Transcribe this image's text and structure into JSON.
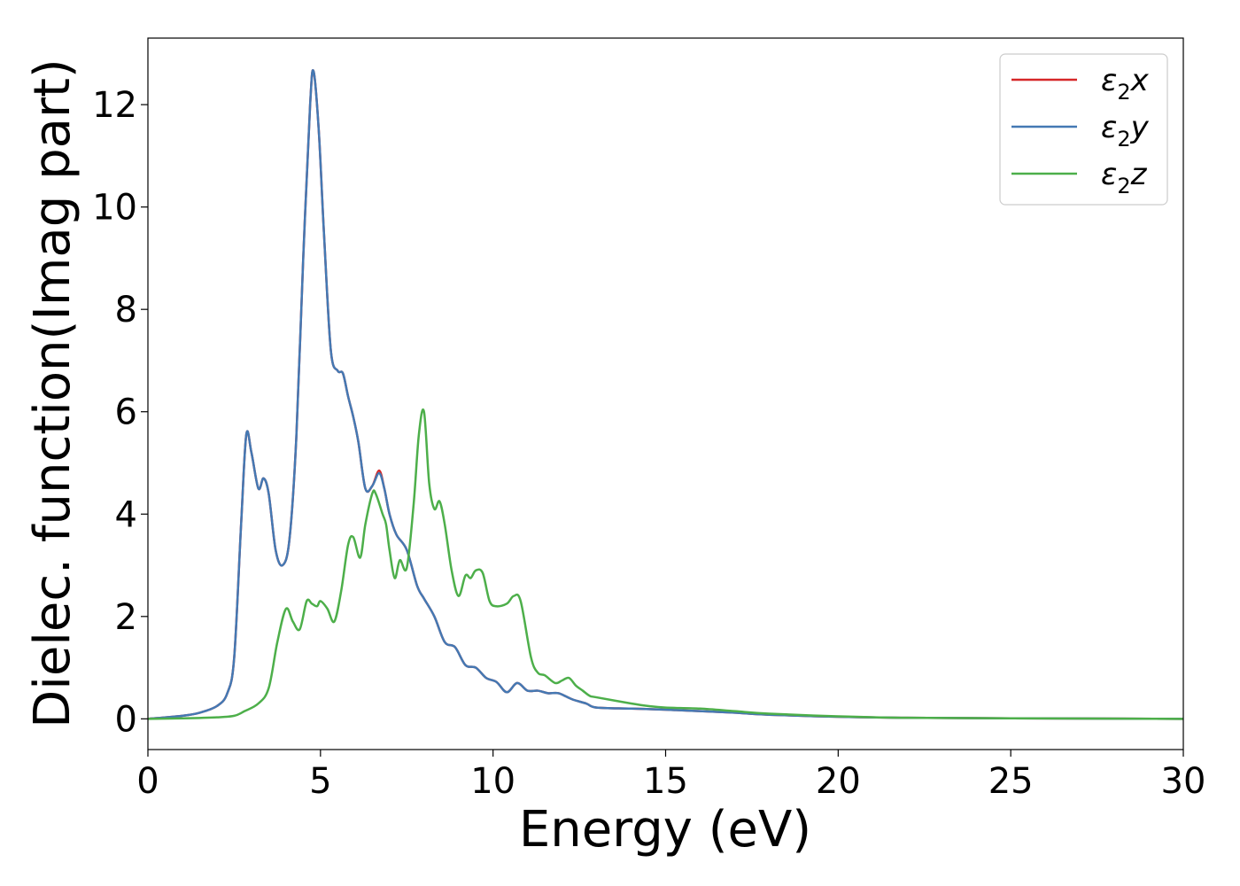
{
  "chart_data": {
    "type": "line",
    "title": "",
    "xlabel": "Energy (eV)",
    "ylabel": "Dielec. function(Imag part)",
    "xlim": [
      0,
      30
    ],
    "ylim": [
      -0.6,
      13.3
    ],
    "xticks": [
      0,
      5,
      10,
      15,
      20,
      25,
      30
    ],
    "yticks": [
      0,
      2,
      4,
      6,
      8,
      10,
      12
    ],
    "grid": false,
    "legend_position": "top-right",
    "series": [
      {
        "name": "ε₂x",
        "legend_main": "ε",
        "legend_sub": "2",
        "legend_tail": "x",
        "color": "#d62728",
        "x": [
          0,
          1,
          1.5,
          2,
          2.3,
          2.5,
          2.7,
          2.85,
          3.0,
          3.2,
          3.35,
          3.5,
          3.7,
          3.9,
          4.1,
          4.3,
          4.5,
          4.7,
          4.8,
          4.95,
          5.1,
          5.3,
          5.5,
          5.65,
          5.8,
          5.95,
          6.1,
          6.3,
          6.5,
          6.7,
          6.85,
          7.0,
          7.2,
          7.5,
          7.8,
          8.0,
          8.3,
          8.6,
          8.9,
          9.2,
          9.5,
          9.8,
          10.1,
          10.4,
          10.7,
          11.0,
          11.3,
          11.6,
          11.9,
          12.3,
          12.7,
          13.0,
          14,
          15,
          16,
          17,
          18,
          20,
          22,
          25,
          30
        ],
        "y": [
          0,
          0.06,
          0.12,
          0.25,
          0.5,
          1.2,
          3.8,
          5.55,
          5.2,
          4.5,
          4.7,
          4.4,
          3.3,
          3.0,
          3.5,
          5.5,
          9.0,
          12.0,
          12.65,
          11.5,
          9.5,
          7.2,
          6.8,
          6.75,
          6.3,
          5.9,
          5.4,
          4.5,
          4.55,
          4.85,
          4.5,
          4.0,
          3.6,
          3.3,
          2.6,
          2.35,
          2.0,
          1.5,
          1.4,
          1.05,
          1.0,
          0.8,
          0.72,
          0.52,
          0.7,
          0.55,
          0.55,
          0.5,
          0.5,
          0.38,
          0.3,
          0.22,
          0.2,
          0.18,
          0.15,
          0.12,
          0.08,
          0.04,
          0.02,
          0.01,
          0.0
        ]
      },
      {
        "name": "ε₂y",
        "legend_main": "ε",
        "legend_sub": "2",
        "legend_tail": "y",
        "color": "#4479b3",
        "x": [
          0,
          1,
          1.5,
          2,
          2.3,
          2.5,
          2.7,
          2.85,
          3.0,
          3.2,
          3.35,
          3.5,
          3.7,
          3.9,
          4.1,
          4.3,
          4.5,
          4.7,
          4.8,
          4.95,
          5.1,
          5.3,
          5.5,
          5.65,
          5.8,
          5.95,
          6.1,
          6.3,
          6.5,
          6.7,
          6.85,
          7.0,
          7.2,
          7.5,
          7.8,
          8.0,
          8.3,
          8.6,
          8.9,
          9.2,
          9.5,
          9.8,
          10.1,
          10.4,
          10.7,
          11.0,
          11.3,
          11.6,
          11.9,
          12.3,
          12.7,
          13.0,
          14,
          15,
          16,
          17,
          18,
          20,
          22,
          25,
          30
        ],
        "y": [
          0,
          0.06,
          0.12,
          0.25,
          0.5,
          1.2,
          3.8,
          5.55,
          5.2,
          4.5,
          4.7,
          4.4,
          3.3,
          3.0,
          3.5,
          5.5,
          9.0,
          12.0,
          12.65,
          11.5,
          9.5,
          7.2,
          6.8,
          6.75,
          6.3,
          5.9,
          5.4,
          4.5,
          4.55,
          4.8,
          4.5,
          4.0,
          3.6,
          3.3,
          2.6,
          2.35,
          2.0,
          1.5,
          1.4,
          1.05,
          1.0,
          0.8,
          0.72,
          0.52,
          0.7,
          0.55,
          0.55,
          0.5,
          0.5,
          0.38,
          0.3,
          0.22,
          0.2,
          0.18,
          0.15,
          0.12,
          0.08,
          0.04,
          0.02,
          0.01,
          0.0
        ]
      },
      {
        "name": "ε₂z",
        "legend_main": "ε",
        "legend_sub": "2",
        "legend_tail": "z",
        "color": "#4daf4a",
        "x": [
          0,
          1,
          2,
          2.5,
          2.8,
          3.2,
          3.5,
          3.75,
          4.0,
          4.2,
          4.4,
          4.6,
          4.75,
          4.9,
          5.0,
          5.2,
          5.4,
          5.6,
          5.8,
          5.95,
          6.15,
          6.3,
          6.5,
          6.6,
          6.8,
          6.9,
          7.0,
          7.15,
          7.3,
          7.5,
          7.7,
          7.85,
          8.0,
          8.15,
          8.3,
          8.45,
          8.6,
          8.8,
          9.0,
          9.2,
          9.35,
          9.5,
          9.7,
          9.9,
          10.1,
          10.4,
          10.6,
          10.8,
          11.1,
          11.3,
          11.5,
          11.8,
          12.0,
          12.2,
          12.4,
          12.6,
          12.8,
          13.0,
          14,
          14.5,
          15,
          16,
          17,
          18,
          20,
          22,
          25,
          30
        ],
        "y": [
          0,
          0.01,
          0.03,
          0.06,
          0.15,
          0.3,
          0.6,
          1.5,
          2.15,
          1.9,
          1.75,
          2.3,
          2.25,
          2.2,
          2.3,
          2.15,
          1.9,
          2.5,
          3.4,
          3.55,
          3.15,
          3.8,
          4.4,
          4.4,
          4.0,
          3.8,
          3.3,
          2.75,
          3.1,
          2.95,
          4.2,
          5.55,
          6.0,
          4.6,
          4.1,
          4.25,
          3.8,
          2.9,
          2.4,
          2.8,
          2.75,
          2.9,
          2.85,
          2.3,
          2.2,
          2.25,
          2.4,
          2.3,
          1.2,
          0.9,
          0.85,
          0.7,
          0.75,
          0.8,
          0.65,
          0.55,
          0.45,
          0.42,
          0.3,
          0.25,
          0.22,
          0.2,
          0.15,
          0.1,
          0.05,
          0.02,
          0.01,
          0.0
        ]
      }
    ]
  }
}
